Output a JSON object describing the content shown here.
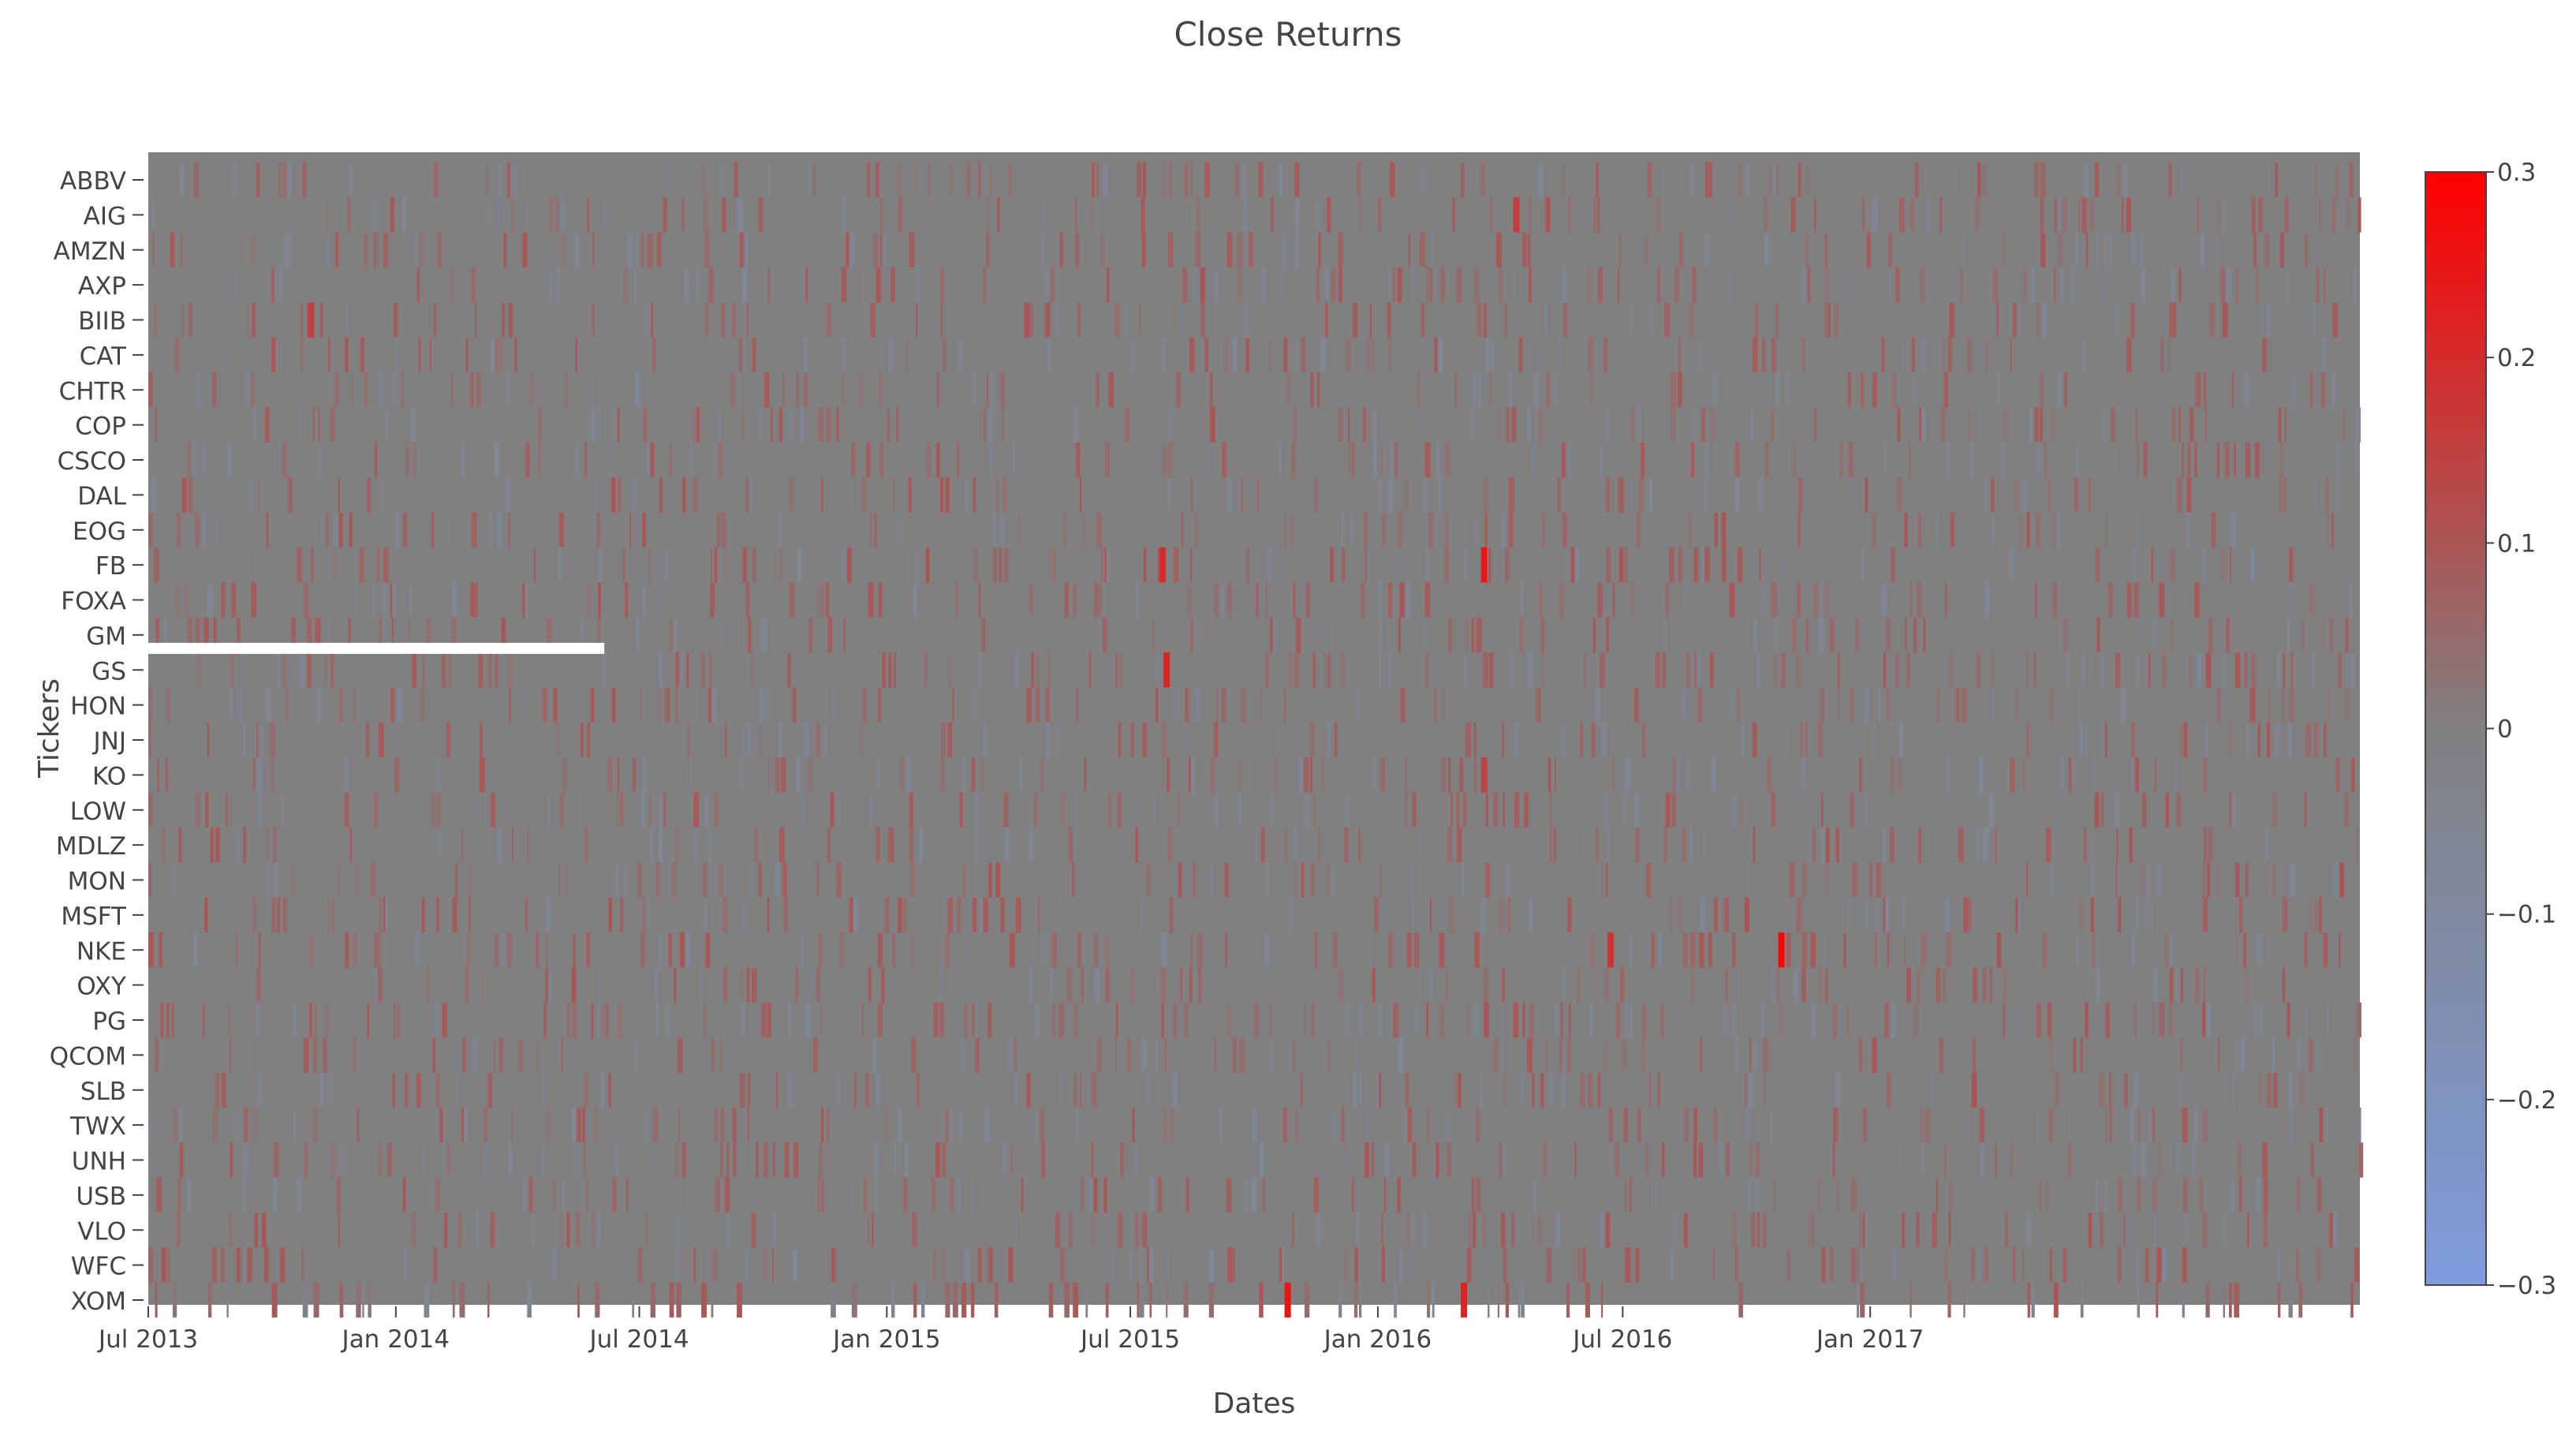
{
  "chart_data": {
    "type": "heatmap",
    "title": "Close Returns",
    "xlabel": "Dates",
    "ylabel": "Tickers",
    "x_ticks": [
      "Jul 2013",
      "Jan 2014",
      "Jul 2014",
      "Jan 2015",
      "Jul 2015",
      "Jan 2016",
      "Jul 2016",
      "Jan 2017"
    ],
    "x_range": [
      "2013-07-01",
      "2017-12-31"
    ],
    "y_ticks": [
      "ABBV",
      "AIG",
      "AMZN",
      "AXP",
      "BIIB",
      "CAT",
      "CHTR",
      "COP",
      "CSCO",
      "DAL",
      "EOG",
      "FB",
      "FOXA",
      "GM",
      "GS",
      "HON",
      "JNJ",
      "KO",
      "LOW",
      "MDLZ",
      "MON",
      "MSFT",
      "NKE",
      "OXY",
      "PG",
      "QCOM",
      "SLB",
      "TWX",
      "UNH",
      "USB",
      "VLO",
      "WFC",
      "XOM"
    ],
    "missing_data": [
      {
        "ticker": "GM",
        "from": "2013-07-01",
        "to": "2014-06-05"
      }
    ],
    "notable_cells": [
      {
        "ticker": "FB",
        "date": "2016-03-20",
        "value": 0.25
      },
      {
        "ticker": "FB",
        "date": "2015-07-25",
        "value": 0.2
      },
      {
        "ticker": "GS",
        "date": "2015-07-28",
        "value": 0.22
      },
      {
        "ticker": "NKE",
        "date": "2016-10-27",
        "value": 0.28
      },
      {
        "ticker": "NKE",
        "date": "2016-06-22",
        "value": 0.18
      },
      {
        "ticker": "XOM",
        "date": "2015-10-26",
        "value": 0.25
      },
      {
        "ticker": "XOM",
        "date": "2016-03-05",
        "value": 0.22
      },
      {
        "ticker": "BIIB",
        "date": "2013-10-30",
        "value": 0.15
      },
      {
        "ticker": "AIG",
        "date": "2016-04-13",
        "value": 0.16
      },
      {
        "ticker": "KO",
        "date": "2016-03-20",
        "value": 0.14
      }
    ],
    "colorscale": {
      "min": -0.3,
      "max": 0.3,
      "low_color": "#7f9cde",
      "mid_color": "#808080",
      "high_color": "#ff0000"
    },
    "colorbar": {
      "ticks": [
        "0.3",
        "0.2",
        "0.1",
        "0",
        "−0.1",
        "−0.2",
        "−0.3"
      ]
    },
    "grid": false,
    "legend": "colorbar-right"
  }
}
